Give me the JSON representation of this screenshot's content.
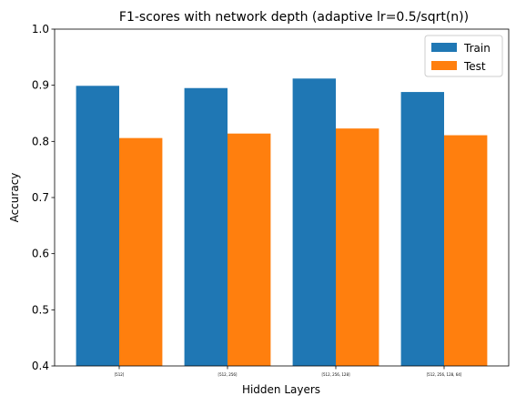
{
  "chart_data": {
    "type": "bar",
    "title": "F1-scores with network depth (adaptive lr=0.5/sqrt(n))",
    "xlabel": "Hidden Layers",
    "ylabel": "Accuracy",
    "categories": [
      "[512]",
      "[512, 256]",
      "[512, 256, 128]",
      "[512, 256, 128, 64]"
    ],
    "series": [
      {
        "name": "Train",
        "color": "#1f77b4",
        "values": [
          0.899,
          0.895,
          0.912,
          0.888
        ]
      },
      {
        "name": "Test",
        "color": "#ff7f0e",
        "values": [
          0.806,
          0.814,
          0.823,
          0.811
        ]
      }
    ],
    "ylim": [
      0.4,
      1.0
    ],
    "yticks": [
      "0.4",
      "0.5",
      "0.6",
      "0.7",
      "0.8",
      "0.9",
      "1.0"
    ],
    "grid": false,
    "legend_position": "top-right"
  }
}
